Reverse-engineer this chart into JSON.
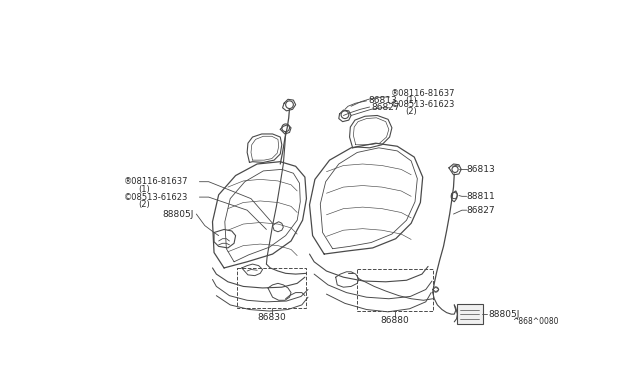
{
  "bg_color": "#ffffff",
  "line_color": "#4a4a4a",
  "label_color": "#2a2a2a",
  "figure_width": 6.4,
  "figure_height": 3.72,
  "dpi": 100,
  "watermark": "^868^0080"
}
